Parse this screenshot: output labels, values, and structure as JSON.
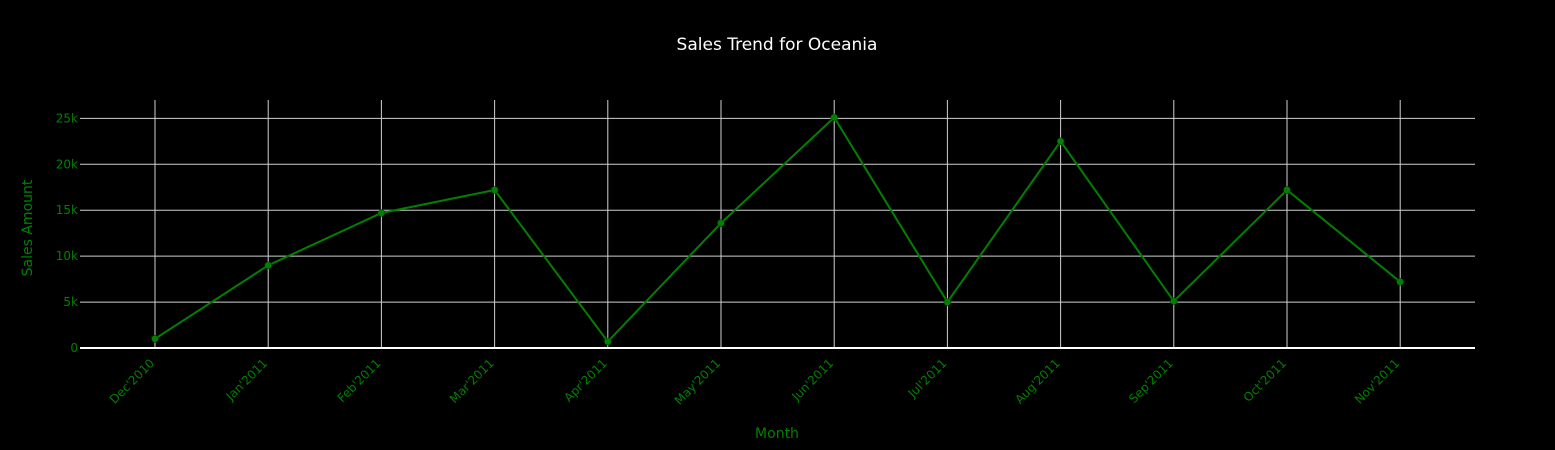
{
  "chart_data": {
    "type": "line",
    "title": "Sales Trend for Oceania",
    "xlabel": "Month",
    "ylabel": "Sales Amount",
    "categories": [
      "Dec'2010",
      "Jan'2011",
      "Feb'2011",
      "Mar'2011",
      "Apr'2011",
      "May'2011",
      "Jun'2011",
      "Jul'2011",
      "Aug'2011",
      "Sep'2011",
      "Oct'2011",
      "Nov'2011"
    ],
    "series": [
      {
        "values": [
          1000,
          9000,
          14700,
          17200,
          700,
          13600,
          25100,
          5000,
          22500,
          5100,
          17200,
          7200
        ]
      }
    ],
    "ylim": [
      0,
      27000
    ],
    "yticks": [
      0,
      5000,
      10000,
      15000,
      20000,
      25000
    ],
    "ytick_labels": [
      "0",
      "5k",
      "10k",
      "15k",
      "20k",
      "25k"
    ],
    "grid": true,
    "legend": "none",
    "colors": {
      "background": "#000000",
      "line": "#008000",
      "text": "#008000",
      "title": "#ffffff",
      "grid": "#d0d0d0"
    }
  }
}
